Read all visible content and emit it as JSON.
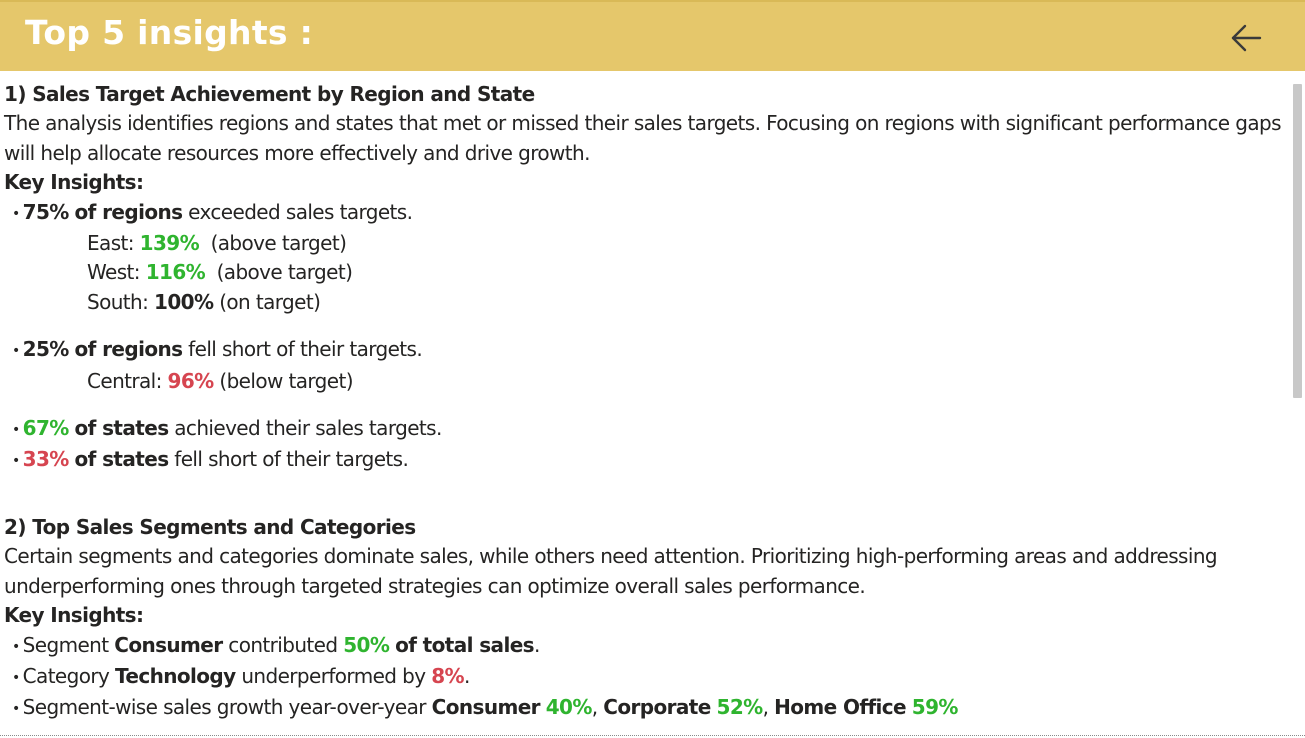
{
  "header": {
    "title": "Top 5 insights :",
    "background": "#e5c76b",
    "back_icon": "arrow-left-icon"
  },
  "colors": {
    "positive": "#2fb42f",
    "negative": "#d64550"
  },
  "sections": [
    {
      "heading": "1) Sales Target Achievement by Region and State",
      "description": "The analysis identifies regions and states that met or missed their sales targets. Focusing on regions with significant performance gaps will help allocate resources more effectively and drive growth.",
      "key_label": "Key Insights:",
      "bullet1": {
        "pct": "75%",
        "subject": "of regions",
        "rest": "exceeded sales targets."
      },
      "east": {
        "label": "East:",
        "value": "139%",
        "note": "(above target)"
      },
      "west": {
        "label": "West:",
        "value": "116%",
        "note": "(above target)"
      },
      "south": {
        "label": "South:",
        "value": "100%",
        "note": "(on target)"
      },
      "bullet2": {
        "pct": "25%",
        "subject": "of regions",
        "rest": "fell short of their targets."
      },
      "central": {
        "label": "Central:",
        "value": "96%",
        "note": "(below target)"
      },
      "bullet3": {
        "pct": "67%",
        "subject": "of states",
        "rest": "achieved their sales targets."
      },
      "bullet4": {
        "pct": "33%",
        "subject": "of states",
        "rest": "fell short of their targets."
      }
    },
    {
      "heading": "2) Top Sales Segments and Categories",
      "description": "Certain segments and categories dominate sales, while others need attention. Prioritizing high-performing areas and addressing underperforming ones through targeted strategies can optimize overall sales performance.",
      "key_label": "Key Insights:",
      "bullet1": {
        "prefix": "Segment",
        "name": "Consumer",
        "mid": "contributed",
        "pct": "50%",
        "tail": "of total sales",
        "end": "."
      },
      "bullet2": {
        "prefix": "Category",
        "name": "Technology",
        "mid": "underperformed by",
        "pct": "8%",
        "end": "."
      },
      "bullet3": {
        "prefix": "Segment-wise sales growth year-over-year",
        "consumer": "Consumer",
        "consumer_pct": "40%",
        "corporate": "Corporate",
        "corporate_pct": "52%",
        "home": "Home Office",
        "home_pct": "59%"
      }
    }
  ]
}
